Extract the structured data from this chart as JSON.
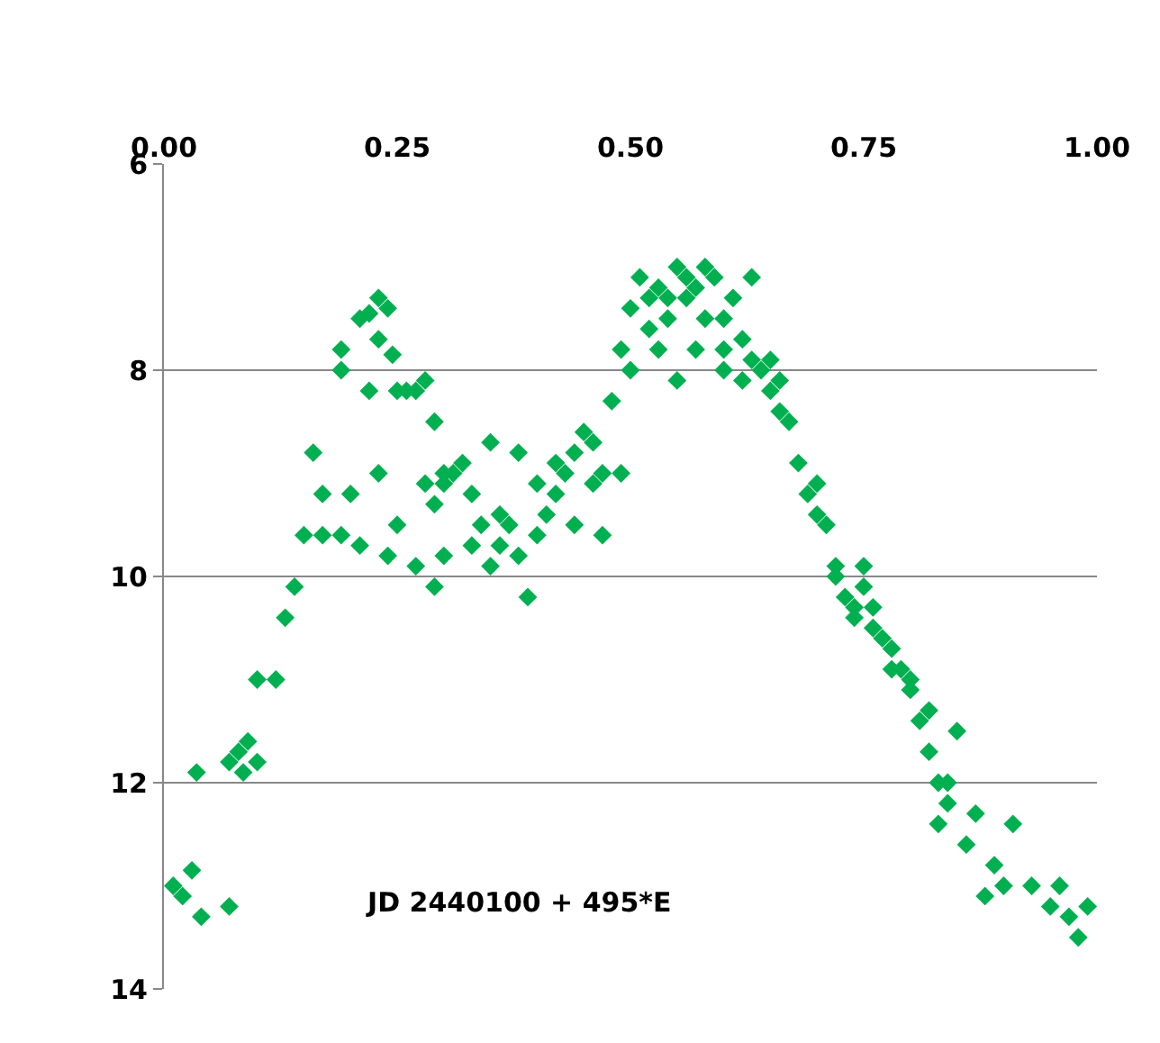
{
  "chart_data": {
    "type": "scatter",
    "x": [
      0.01,
      0.02,
      0.03,
      0.035,
      0.04,
      0.07,
      0.07,
      0.08,
      0.085,
      0.09,
      0.1,
      0.12,
      0.1,
      0.13,
      0.14,
      0.15,
      0.17,
      0.19,
      0.16,
      0.17,
      0.19,
      0.19,
      0.21,
      0.22,
      0.23,
      0.24,
      0.23,
      0.245,
      0.25,
      0.22,
      0.26,
      0.27,
      0.28,
      0.29,
      0.2,
      0.21,
      0.23,
      0.24,
      0.25,
      0.27,
      0.28,
      0.29,
      0.3,
      0.29,
      0.3,
      0.31,
      0.32,
      0.33,
      0.34,
      0.35,
      0.36,
      0.37,
      0.38,
      0.38,
      0.39,
      0.4,
      0.41,
      0.42,
      0.43,
      0.44,
      0.45,
      0.46,
      0.47,
      0.47,
      0.48,
      0.49,
      0.49,
      0.5,
      0.5,
      0.51,
      0.52,
      0.53,
      0.54,
      0.55,
      0.56,
      0.57,
      0.57,
      0.58,
      0.59,
      0.6,
      0.6,
      0.61,
      0.62,
      0.63,
      0.64,
      0.65,
      0.66,
      0.67,
      0.68,
      0.69,
      0.7,
      0.71,
      0.72,
      0.73,
      0.74,
      0.75,
      0.75,
      0.76,
      0.77,
      0.78,
      0.79,
      0.8,
      0.81,
      0.82,
      0.83,
      0.83,
      0.84,
      0.85,
      0.86,
      0.87,
      0.88,
      0.89,
      0.9,
      0.91,
      0.93,
      0.95,
      0.96,
      0.97,
      0.98,
      0.99,
      0.3,
      0.33,
      0.35,
      0.36,
      0.4,
      0.42,
      0.44,
      0.46,
      0.52,
      0.53,
      0.54,
      0.55,
      0.56,
      0.58,
      0.6,
      0.62,
      0.63,
      0.65,
      0.66,
      0.7,
      0.72,
      0.74,
      0.76,
      0.78,
      0.8,
      0.82,
      0.84
    ],
    "values": [
      13.0,
      13.1,
      12.85,
      11.9,
      13.3,
      13.2,
      11.8,
      11.7,
      11.9,
      11.6,
      11.0,
      11.0,
      11.8,
      10.4,
      10.1,
      9.6,
      9.6,
      9.6,
      8.8,
      9.2,
      8.0,
      7.8,
      7.5,
      7.45,
      7.3,
      7.4,
      7.7,
      7.85,
      8.2,
      8.2,
      8.2,
      8.2,
      8.1,
      8.5,
      9.2,
      9.7,
      9.0,
      9.8,
      9.5,
      9.9,
      9.1,
      9.3,
      9.8,
      10.1,
      9.0,
      9.0,
      8.9,
      9.2,
      9.5,
      8.7,
      9.7,
      9.5,
      9.8,
      8.8,
      10.2,
      9.1,
      9.4,
      9.2,
      9.0,
      8.8,
      8.6,
      9.1,
      9.6,
      9.0,
      8.3,
      7.8,
      9.0,
      8.0,
      7.4,
      7.1,
      7.6,
      7.2,
      7.3,
      7.0,
      7.1,
      7.2,
      7.8,
      7.5,
      7.1,
      7.5,
      8.0,
      7.3,
      7.7,
      7.1,
      8.0,
      7.9,
      8.4,
      8.5,
      8.9,
      9.2,
      9.4,
      9.5,
      9.9,
      10.2,
      10.3,
      10.1,
      9.9,
      10.5,
      10.6,
      10.7,
      10.9,
      11.1,
      11.4,
      11.7,
      12.0,
      12.4,
      12.2,
      11.5,
      12.6,
      12.3,
      13.1,
      12.8,
      13.0,
      12.4,
      13.0,
      13.2,
      13.0,
      13.3,
      13.5,
      13.2,
      9.1,
      9.7,
      9.9,
      9.4,
      9.6,
      8.9,
      9.5,
      8.7,
      7.3,
      7.8,
      7.5,
      8.1,
      7.3,
      7.0,
      7.8,
      8.1,
      7.9,
      8.2,
      8.1,
      9.1,
      10.0,
      10.4,
      10.3,
      10.9,
      11.0,
      11.3,
      12.0
    ],
    "color": "#00b050",
    "marker": "diamond",
    "xlim": [
      0,
      1
    ],
    "xticks": [
      {
        "value": 0,
        "label": "0.00"
      },
      {
        "value": 0.25,
        "label": "0.25"
      },
      {
        "value": 0.5,
        "label": "0.50"
      },
      {
        "value": 0.75,
        "label": "0.75"
      },
      {
        "value": 1,
        "label": "1.00"
      }
    ],
    "ylim": [
      14,
      6
    ],
    "yticks": [
      6,
      8,
      10,
      12,
      14
    ],
    "grid": "y",
    "legend": false,
    "annotations": [
      "JD 2440100 + 495*E"
    ]
  }
}
